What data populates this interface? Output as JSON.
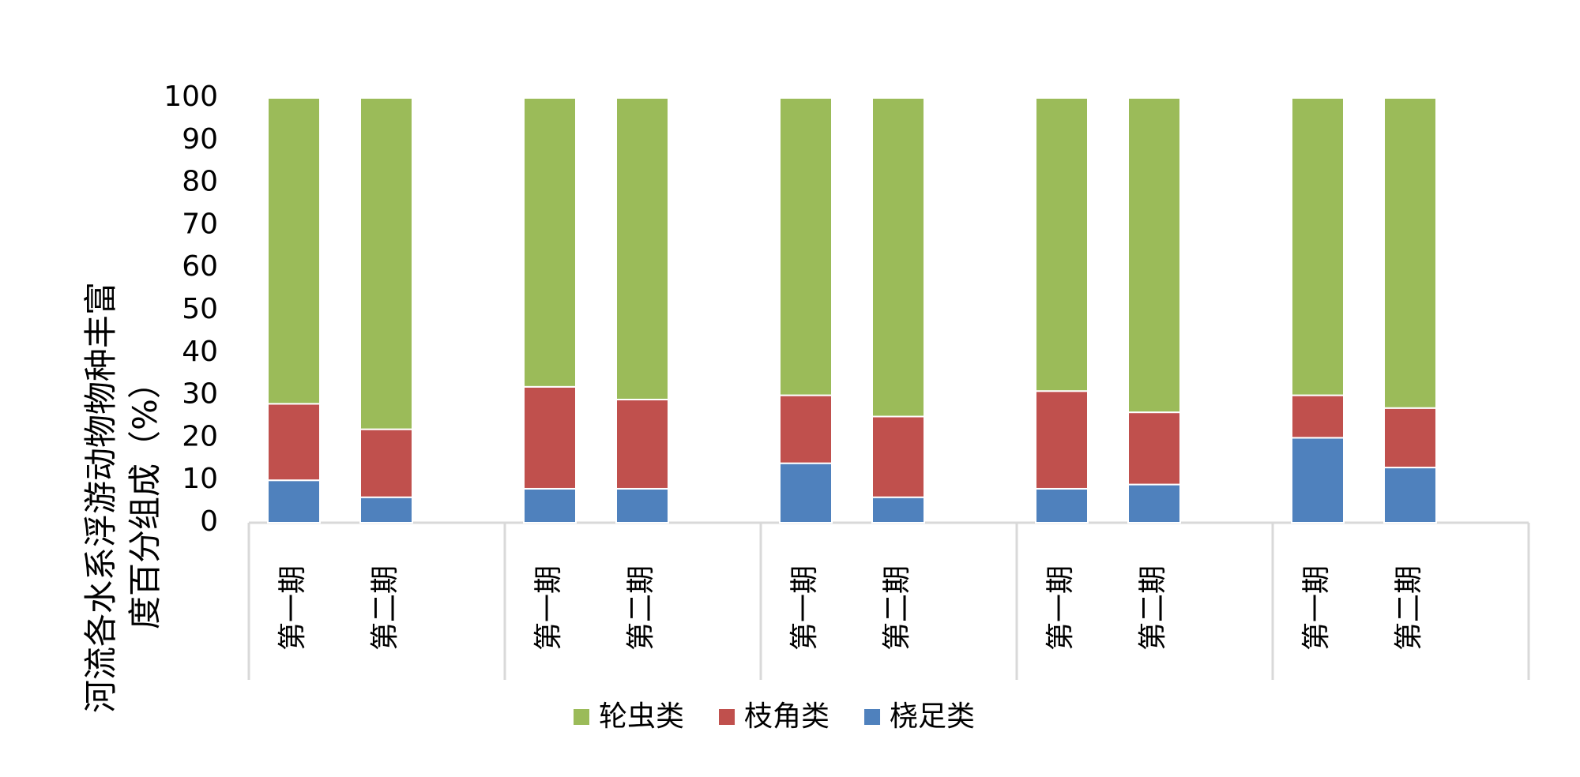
{
  "chart_data": {
    "type": "stacked-bar",
    "y_label": "河流各水系浮游动物物种丰富度百分组成（%）",
    "categories": [
      "第一期",
      "第二期",
      "第一期",
      "第二期",
      "第一期",
      "第二期",
      "第一期",
      "第二期",
      "第一期",
      "第二期"
    ],
    "series": [
      {
        "name": "轮虫类",
        "color": "#9bbb59",
        "values": [
          72,
          78,
          68,
          71,
          70,
          75,
          69,
          74,
          70,
          73
        ]
      },
      {
        "name": "枝角类",
        "color": "#c0504d",
        "values": [
          18,
          16,
          24,
          21,
          16,
          19,
          23,
          17,
          10,
          14
        ]
      },
      {
        "name": "桡足类",
        "color": "#4f81bd",
        "values": [
          10,
          6,
          8,
          8,
          14,
          6,
          8,
          9,
          20,
          13
        ]
      }
    ],
    "ylim": [
      0,
      100
    ],
    "yticks": [
      0,
      10,
      20,
      30,
      40,
      50,
      60,
      70,
      80,
      90,
      100
    ],
    "grid": false
  }
}
